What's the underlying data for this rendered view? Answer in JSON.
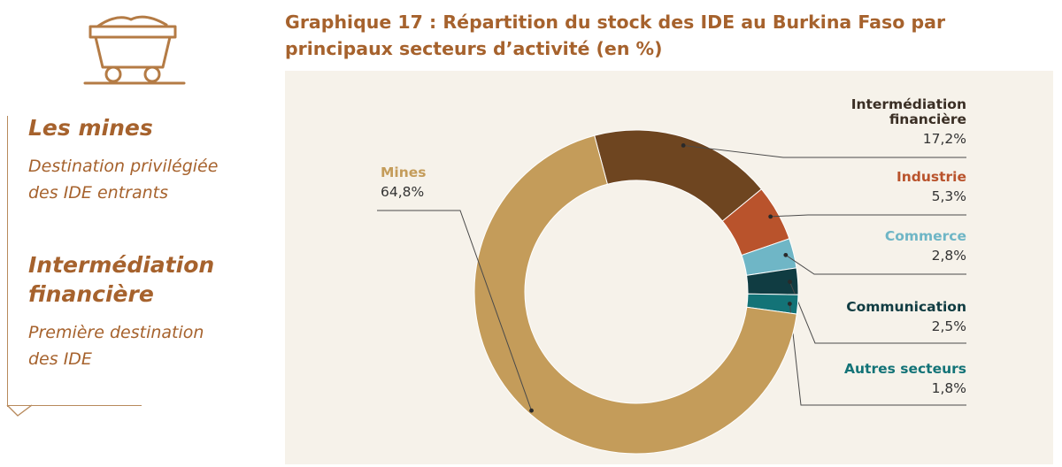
{
  "sidebar": {
    "icon": "mine-cart-icon",
    "items": [
      {
        "heading": "Les mines",
        "description": [
          "Destination privilégiée",
          "des IDE entrants"
        ]
      },
      {
        "heading": [
          "Intermédiation",
          "financière"
        ],
        "description": [
          "Première destination",
          "des IDE"
        ]
      }
    ]
  },
  "chart_title": [
    "Graphique 17 : Répartition du stock des IDE au Burkina Faso par",
    "principaux secteurs d’activité (en %)"
  ],
  "colors": {
    "brand": "#a6622d",
    "panel_bg": "#f6f2ea",
    "leader_line": "#4a4a4a"
  },
  "chart_data": {
    "type": "pie",
    "variant": "donut",
    "unit": "%",
    "start_angle_deg": -15,
    "slices": [
      {
        "label": [
          "Intermédiation",
          "financière"
        ],
        "value": 17.2,
        "value_label": "17,2%",
        "color": "#6e4520",
        "label_color": "#3a2e24"
      },
      {
        "label": [
          "Industrie"
        ],
        "value": 5.3,
        "value_label": "5,3%",
        "color": "#b9532c",
        "label_color": "#b9532c"
      },
      {
        "label": [
          "Commerce"
        ],
        "value": 2.8,
        "value_label": "2,8%",
        "color": "#6fb6c6",
        "label_color": "#6fb6c6"
      },
      {
        "label": [
          "Communication"
        ],
        "value": 2.5,
        "value_label": "2,5%",
        "color": "#103c42",
        "label_color": "#103c42"
      },
      {
        "label": [
          "Autres secteurs"
        ],
        "value": 1.8,
        "value_label": "1,8%",
        "color": "#137377",
        "label_color": "#137377"
      },
      {
        "label": [
          "Mines"
        ],
        "value": 64.8,
        "value_label": "64,8%",
        "color": "#c49c5a",
        "label_color": "#c49c5a"
      }
    ]
  }
}
